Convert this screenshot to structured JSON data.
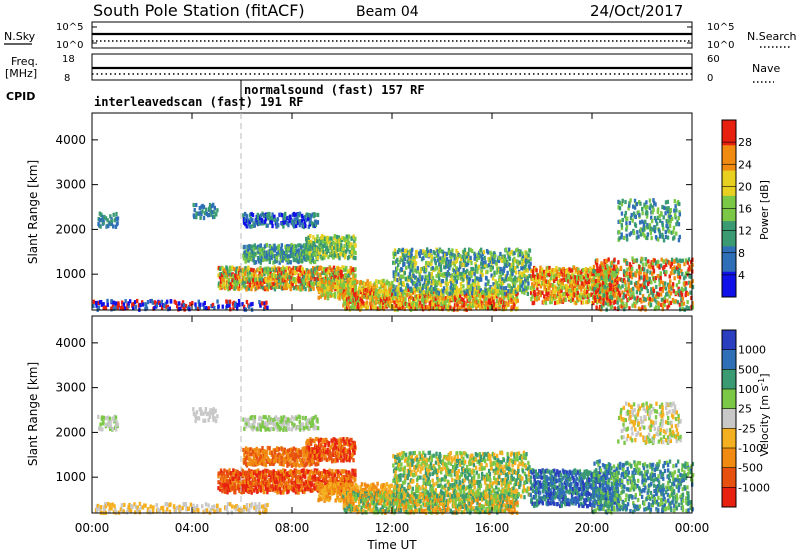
{
  "header": {
    "station": "South Pole Station (fitACF)",
    "beam": "Beam 04",
    "date": "24/Oct/2017"
  },
  "left_labels": {
    "nsky": "N.Sky",
    "nsky_tick_top": "10^5",
    "nsky_tick_bottom": "10^0",
    "freq_line1": "Freq.",
    "freq_line2": "[MHz]",
    "freq_tick_top": "18",
    "freq_tick_bottom": "8",
    "cpid": "CPID"
  },
  "right_labels": {
    "nsearch": "N.Search",
    "nsearch_tick_top": "10^5",
    "nsearch_tick_bottom": "10^0",
    "nave": "Nave",
    "nave_tick_top": "60",
    "nave_tick_bottom": "0"
  },
  "cpid_labels": {
    "first": "interleavedscan (fast) 191 RF",
    "second": "normalsound (fast) 157 RF"
  },
  "chart_data": [
    {
      "type": "heatmap",
      "panel": "power",
      "ylabel": "Slant Range [km]",
      "yticks": [
        "1000",
        "2000",
        "3000",
        "4000"
      ],
      "ylim": [
        200,
        4600
      ],
      "colorbar_label": "Power [dB]",
      "colorbar_ticks": [
        "4",
        "8",
        "12",
        "16",
        "20",
        "24",
        "28"
      ],
      "colorbar_range": [
        0,
        32
      ],
      "colors": [
        "#1010e8",
        "#2f6fb8",
        "#3a9a72",
        "#7bc846",
        "#e8d020",
        "#f08a10",
        "#e82010"
      ]
    },
    {
      "type": "heatmap",
      "panel": "velocity",
      "ylabel": "Slant Range [km]",
      "yticks": [
        "1000",
        "2000",
        "3000",
        "4000"
      ],
      "ylim": [
        200,
        4600
      ],
      "colorbar_label": "Velocity [m s^-1]",
      "colorbar_ticks": [
        "1000",
        "500",
        "100",
        "25",
        "-25",
        "-100",
        "-500",
        "-1000"
      ],
      "colors": [
        "#2a3ec0",
        "#2f6fb8",
        "#3a9a72",
        "#7bc846",
        "#c8c8c8",
        "#f4b020",
        "#f08a10",
        "#e85010",
        "#e82010"
      ]
    }
  ],
  "xaxis": {
    "ticks": [
      "00:00",
      "04:00",
      "08:00",
      "12:00",
      "16:00",
      "20:00",
      "00:00"
    ],
    "label": "Time UT",
    "range_hours": [
      0,
      24
    ]
  }
}
